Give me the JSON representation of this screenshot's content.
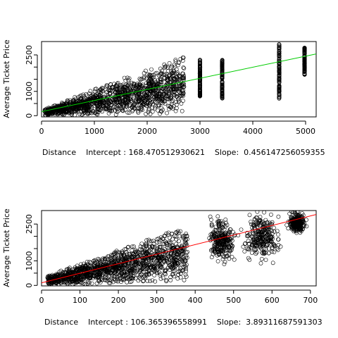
{
  "chart_data": [
    {
      "type": "scatter",
      "xlabel": "Distance    Intercept : 168.470512930621    Slope:  0.456147256059355",
      "ylabel": "Average Ticket Price",
      "xlim": [
        0,
        5200
      ],
      "ylim": [
        -50,
        3050
      ],
      "xticks": [
        0,
        1000,
        2000,
        3000,
        4000,
        5000
      ],
      "yticks": [
        0,
        500,
        1000,
        1500,
        2000,
        2500
      ],
      "yticklabels_shown": [
        0,
        1000,
        2500
      ],
      "grid": false,
      "regression": {
        "intercept": 168.470512930621,
        "slope": 0.456147256059355,
        "color": "#00cc00"
      },
      "point_style": {
        "shape": "open-circle",
        "color": "#000000"
      },
      "clusters": [
        {
          "x_range": [
            60,
            2700
          ],
          "y_low": [
            0,
            80
          ],
          "y_high": [
            300,
            2500
          ],
          "density": "very-high"
        },
        {
          "x": 3000,
          "y_range": [
            800,
            2300
          ]
        },
        {
          "x": 3420,
          "y_range": [
            700,
            2300
          ]
        },
        {
          "x": 4500,
          "y_range": [
            700,
            2950
          ]
        },
        {
          "x": 4980,
          "y_range": [
            1650,
            2800
          ]
        }
      ]
    },
    {
      "type": "scatter",
      "xlabel": "Distance    Intercept : 106.365396558991    Slope:  3.89311687591303",
      "ylabel": "Average Ticket Price",
      "xlim": [
        0,
        715
      ],
      "ylim": [
        -20,
        3050
      ],
      "xticks": [
        0,
        100,
        200,
        300,
        400,
        500,
        600,
        700
      ],
      "yticks": [
        0,
        500,
        1000,
        1500,
        2000,
        2500
      ],
      "yticklabels_shown": [
        0,
        1000,
        2500
      ],
      "grid": false,
      "regression": {
        "intercept": 106.365396558991,
        "slope": 3.89311687591303,
        "color": "#ff0000"
      },
      "point_style": {
        "shape": "open-circle",
        "color": "#000000"
      },
      "clusters": [
        {
          "x_range": [
            15,
            380
          ],
          "y_low": [
            0,
            200
          ],
          "y_high": [
            400,
            2450
          ],
          "density": "very-high"
        },
        {
          "x_range": [
            430,
            510
          ],
          "y_range": [
            800,
            2900
          ]
        },
        {
          "x_range": [
            520,
            630
          ],
          "y_range": [
            900,
            3000
          ]
        },
        {
          "x_range": [
            640,
            690
          ],
          "y_range": [
            2100,
            3000
          ]
        }
      ]
    }
  ]
}
